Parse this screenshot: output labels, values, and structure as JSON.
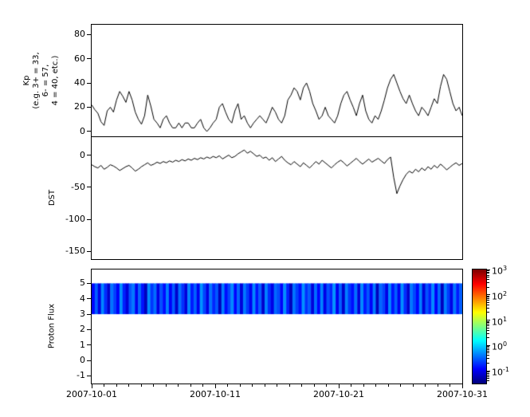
{
  "figure": {
    "background": "#ffffff",
    "line_color": "#000000"
  },
  "chart_data": [
    {
      "type": "line",
      "name": "kp-index",
      "ylabel": "Kp\n(e.g. 3+ = 33,\n6- = 57,\n4 = 40, etc.)",
      "ylim": [
        -4,
        88
      ],
      "yticks": [
        0,
        20,
        40,
        60,
        80
      ],
      "x_range_days": [
        0,
        30
      ],
      "xtick_labels": [
        "2007-10-01",
        "2007-10-11",
        "2007-10-21",
        "2007-10-31"
      ],
      "values": [
        22,
        18,
        15,
        8,
        5,
        17,
        20,
        16,
        26,
        33,
        29,
        24,
        33,
        26,
        16,
        10,
        6,
        13,
        30,
        21,
        10,
        7,
        3,
        10,
        13,
        7,
        3,
        3,
        7,
        3,
        7,
        7,
        3,
        3,
        7,
        10,
        3,
        0,
        3,
        7,
        10,
        20,
        23,
        16,
        10,
        7,
        17,
        23,
        10,
        13,
        7,
        3,
        7,
        10,
        13,
        10,
        7,
        13,
        20,
        16,
        10,
        7,
        13,
        26,
        30,
        36,
        33,
        26,
        36,
        40,
        33,
        23,
        17,
        10,
        13,
        20,
        13,
        10,
        7,
        13,
        23,
        30,
        33,
        26,
        20,
        13,
        23,
        30,
        17,
        10,
        7,
        13,
        10,
        17,
        26,
        36,
        43,
        47,
        40,
        33,
        27,
        23,
        30,
        23,
        17,
        13,
        20,
        17,
        13,
        20,
        27,
        23,
        37,
        47,
        43,
        33,
        23,
        17,
        20,
        13
      ]
    },
    {
      "type": "line",
      "name": "dst-index",
      "ylabel": "DST",
      "ylim": [
        -162,
        28
      ],
      "yticks": [
        0,
        -50,
        -100,
        -150
      ],
      "x_range_days": [
        0,
        30
      ],
      "xtick_labels": [
        "2007-10-01",
        "2007-10-11",
        "2007-10-21",
        "2007-10-31"
      ],
      "values": [
        -15,
        -18,
        -20,
        -16,
        -22,
        -19,
        -15,
        -17,
        -20,
        -24,
        -21,
        -18,
        -16,
        -20,
        -25,
        -22,
        -18,
        -15,
        -12,
        -16,
        -14,
        -11,
        -13,
        -10,
        -12,
        -9,
        -11,
        -8,
        -10,
        -7,
        -9,
        -6,
        -8,
        -5,
        -7,
        -4,
        -6,
        -3,
        -5,
        -2,
        -4,
        -1,
        -6,
        -3,
        0,
        -4,
        -2,
        2,
        5,
        8,
        3,
        6,
        2,
        -2,
        0,
        -5,
        -3,
        -8,
        -4,
        -10,
        -6,
        -2,
        -8,
        -12,
        -15,
        -10,
        -14,
        -18,
        -12,
        -16,
        -20,
        -15,
        -10,
        -14,
        -8,
        -12,
        -16,
        -20,
        -15,
        -11,
        -8,
        -12,
        -17,
        -13,
        -9,
        -5,
        -10,
        -14,
        -10,
        -6,
        -11,
        -8,
        -5,
        -9,
        -13,
        -7,
        -3,
        -35,
        -60,
        -48,
        -38,
        -30,
        -25,
        -28,
        -22,
        -26,
        -20,
        -24,
        -18,
        -22,
        -16,
        -20,
        -14,
        -18,
        -23,
        -19,
        -15,
        -12,
        -16,
        -13
      ]
    },
    {
      "type": "heatmap",
      "name": "proton-flux-spectrogram",
      "ylabel": "Proton Flux",
      "ylim": [
        -1.5,
        5.9
      ],
      "yticks": [
        5,
        4,
        3,
        2,
        1,
        0,
        -1
      ],
      "x_range_days": [
        0,
        30
      ],
      "xtick_labels": [
        "2007-10-01",
        "2007-10-11",
        "2007-10-21",
        "2007-10-31"
      ],
      "band": {
        "ymin": 3,
        "ymax": 5,
        "values": [
          0.12,
          0.3,
          0.09,
          0.45,
          0.18,
          0.07,
          0.38,
          0.22,
          0.11,
          0.5,
          0.16,
          0.08,
          0.27,
          0.4,
          0.1,
          0.33,
          0.14,
          0.06,
          0.48,
          0.2,
          0.35,
          0.09,
          0.26,
          0.13,
          0.42,
          0.11,
          0.29,
          0.07,
          0.36,
          0.19,
          0.08,
          0.44,
          0.15,
          0.31,
          0.1,
          0.52,
          0.23,
          0.09,
          0.37,
          0.17,
          0.28,
          0.06,
          0.41,
          0.13,
          0.24,
          0.47,
          0.12,
          0.32,
          0.08,
          0.39,
          0.21,
          0.1,
          0.46,
          0.14,
          0.3,
          0.07,
          0.43,
          0.18,
          0.09,
          0.34,
          0.25,
          0.11,
          0.49,
          0.16,
          0.06,
          0.38,
          0.22,
          0.13,
          0.51,
          0.19,
          0.29,
          0.08,
          0.35,
          0.12,
          0.44,
          0.09,
          0.26,
          0.17,
          0.53,
          0.1,
          0.31,
          0.07,
          0.42,
          0.2,
          0.13,
          0.36,
          0.08,
          0.47,
          0.15,
          0.28,
          0.11,
          0.4,
          0.06,
          0.33,
          0.23,
          0.09,
          0.45,
          0.14,
          0.3,
          0.1,
          0.5,
          0.18,
          0.07,
          0.39,
          0.24,
          0.12,
          0.43,
          0.08,
          0.27,
          0.16,
          0.48,
          0.11,
          0.34,
          0.06,
          0.41,
          0.21,
          0.09,
          0.37,
          0.15,
          0.29
        ]
      },
      "colorbar": {
        "colormap": "jet",
        "range_exp": [
          -1.5,
          3
        ],
        "tick_exponents": [
          3,
          2,
          1,
          0,
          -1
        ]
      }
    }
  ]
}
